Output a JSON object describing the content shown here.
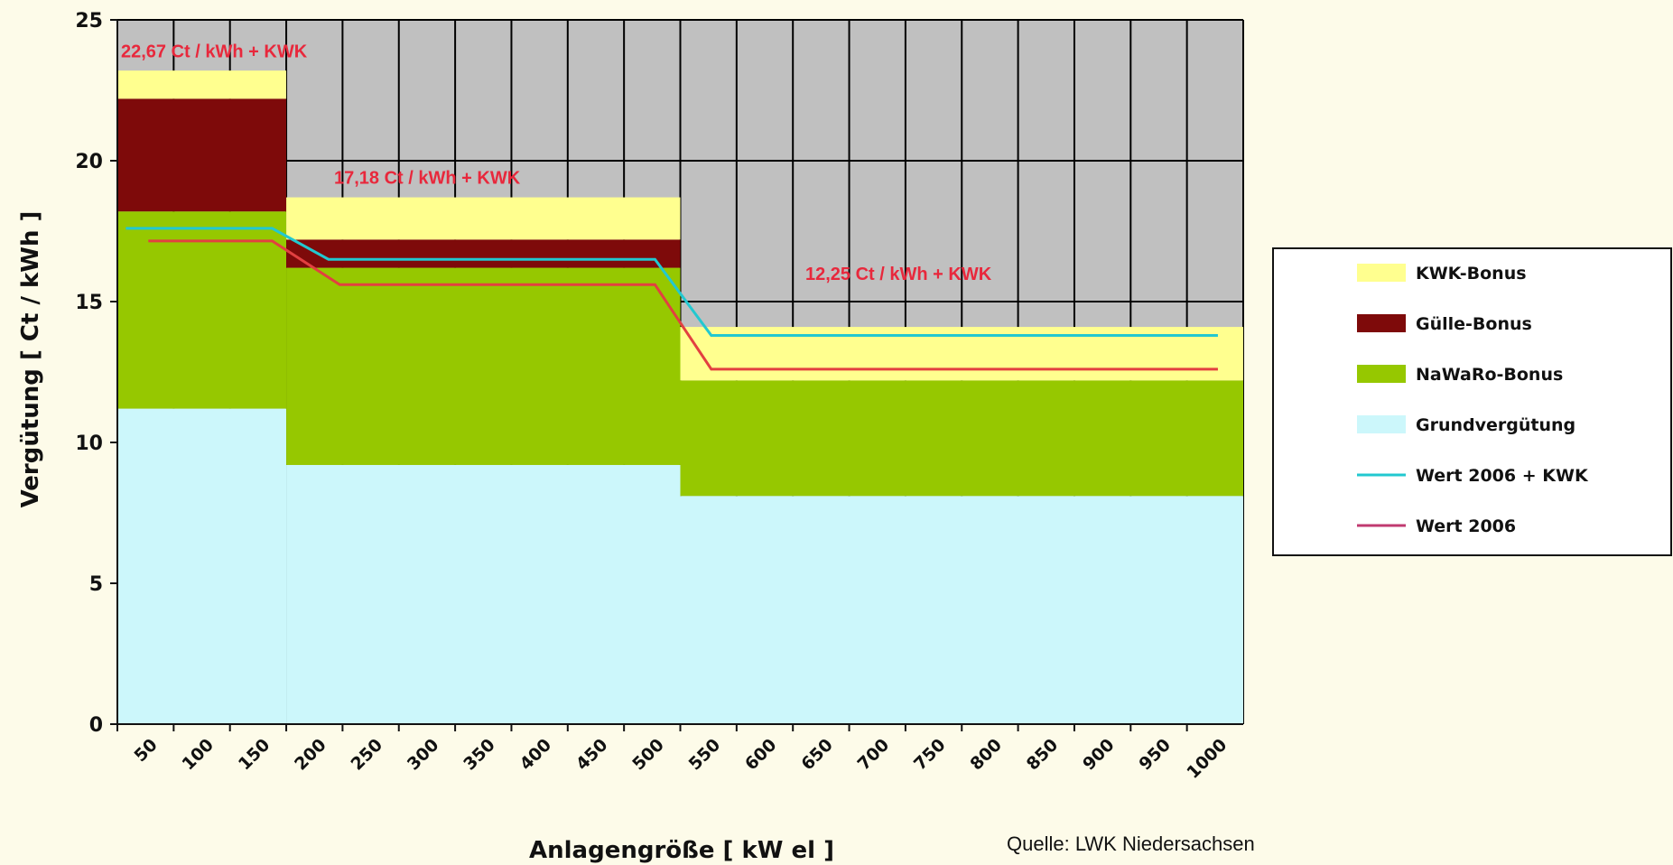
{
  "chart_data": {
    "type": "area",
    "title": "",
    "xlabel": "Anlagengröße [ kW el ]",
    "ylabel": "Vergütung [ Ct / kWh ]",
    "ylim": [
      0,
      25
    ],
    "yticks": [
      "0",
      "5",
      "10",
      "15",
      "20",
      "25"
    ],
    "x_categories": [
      "50",
      "100",
      "150",
      "200",
      "250",
      "300",
      "350",
      "400",
      "450",
      "500",
      "550",
      "600",
      "650",
      "700",
      "750",
      "800",
      "850",
      "900",
      "950",
      "1000"
    ],
    "grid": true,
    "legend_position": "right",
    "segments": [
      {
        "from": "50",
        "to": "200",
        "Grundvergütung": 11.2,
        "NaWaRo-Bonus": 7.0,
        "Gülle-Bonus": 4.0,
        "KWK-Bonus": 1.0
      },
      {
        "from": "200",
        "to": "550",
        "Grundvergütung": 9.2,
        "NaWaRo-Bonus": 7.0,
        "Gülle-Bonus": 1.0,
        "KWK-Bonus": 1.5
      },
      {
        "from": "550",
        "to": "1000",
        "Grundvergütung": 8.1,
        "NaWaRo-Bonus": 4.1,
        "Gülle-Bonus": 0.0,
        "KWK-Bonus": 1.9
      }
    ],
    "series": [
      {
        "name": "KWK-Bonus",
        "color": "#ffff8f"
      },
      {
        "name": "Gülle-Bonus",
        "color": "#7e0a0a"
      },
      {
        "name": "NaWaRo-Bonus",
        "color": "#96c800"
      },
      {
        "name": "Grundvergütung",
        "color": "#ccf7fb"
      },
      {
        "name": "Wert 2006 + KWK",
        "color": "#22c8d0",
        "points": [
          [
            50,
            17.6
          ],
          [
            180,
            17.6
          ],
          [
            230,
            16.5
          ],
          [
            520,
            16.5
          ],
          [
            570,
            13.8
          ],
          [
            1020,
            13.8
          ]
        ]
      },
      {
        "name": "Wert 2006",
        "color": "#e24040",
        "points": [
          [
            70,
            17.15
          ],
          [
            180,
            17.15
          ],
          [
            240,
            15.6
          ],
          [
            520,
            15.6
          ],
          [
            570,
            12.6
          ],
          [
            1020,
            12.6
          ]
        ]
      }
    ],
    "annotations": [
      {
        "text": "22,67 Ct / kWh + KWK",
        "x": "50",
        "y": 23.9
      },
      {
        "text": "17,18 Ct / kWh + KWK",
        "x": "250",
        "y": 19.4
      },
      {
        "text": "12,25 Ct / kWh + KWK",
        "x": "650",
        "y": 16.0
      }
    ],
    "colors": {
      "plot_background": "#c0c0c0",
      "gridline": "#000000",
      "annotation": "#e8283c"
    }
  },
  "legend": {
    "items": [
      {
        "label": "KWK-Bonus",
        "kind": "box",
        "color": "#ffff8f"
      },
      {
        "label": "Gülle-Bonus",
        "kind": "box",
        "color": "#7e0a0a"
      },
      {
        "label": "NaWaRo-Bonus",
        "kind": "box",
        "color": "#96c800"
      },
      {
        "label": "Grundvergütung",
        "kind": "box",
        "color": "#ccf7fb"
      },
      {
        "label": "Wert 2006 + KWK",
        "kind": "line",
        "color": "#22c8d0"
      },
      {
        "label": "Wert 2006",
        "kind": "line",
        "color": "#c03a70"
      }
    ]
  },
  "source": "Quelle: LWK Niedersachsen"
}
